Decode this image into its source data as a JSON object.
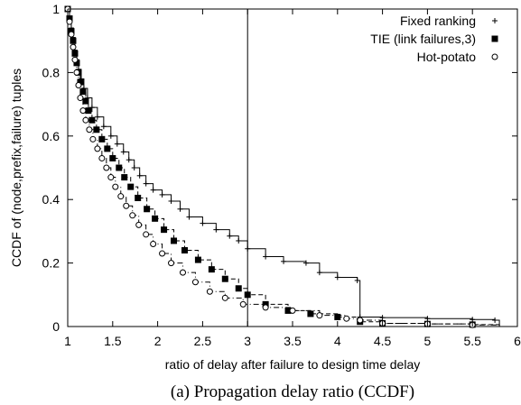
{
  "chart_data": {
    "type": "line",
    "caption": "(a) Propagation delay ratio (CCDF)",
    "xlabel": "ratio of delay after failure to design time delay",
    "ylabel": "CCDF of (node,prefix,failure) tuples",
    "xlim": [
      1,
      6
    ],
    "ylim": [
      0,
      1
    ],
    "xticks": [
      "1",
      "1.5",
      "2",
      "2.5",
      "3",
      "3.5",
      "4",
      "4.5",
      "5",
      "5.5",
      "6"
    ],
    "yticks": [
      "0",
      "0.2",
      "0.4",
      "0.6",
      "0.8",
      "1"
    ],
    "reference_line_x": 3,
    "grid": false,
    "legend_position": "top-right",
    "series": [
      {
        "name": "Fixed ranking",
        "marker": "plus",
        "line_style": "solid",
        "points": [
          [
            1.0,
            1.0
          ],
          [
            1.02,
            0.97
          ],
          [
            1.04,
            0.94
          ],
          [
            1.06,
            0.91
          ],
          [
            1.08,
            0.87
          ],
          [
            1.1,
            0.84
          ],
          [
            1.12,
            0.81
          ],
          [
            1.15,
            0.78
          ],
          [
            1.18,
            0.75
          ],
          [
            1.22,
            0.72
          ],
          [
            1.27,
            0.69
          ],
          [
            1.33,
            0.66
          ],
          [
            1.4,
            0.63
          ],
          [
            1.48,
            0.6
          ],
          [
            1.55,
            0.575
          ],
          [
            1.62,
            0.55
          ],
          [
            1.68,
            0.525
          ],
          [
            1.74,
            0.5
          ],
          [
            1.8,
            0.475
          ],
          [
            1.87,
            0.45
          ],
          [
            1.95,
            0.43
          ],
          [
            2.05,
            0.415
          ],
          [
            2.15,
            0.395
          ],
          [
            2.25,
            0.37
          ],
          [
            2.35,
            0.345
          ],
          [
            2.5,
            0.325
          ],
          [
            2.65,
            0.305
          ],
          [
            2.8,
            0.285
          ],
          [
            2.9,
            0.27
          ],
          [
            3.0,
            0.245
          ],
          [
            3.2,
            0.22
          ],
          [
            3.4,
            0.205
          ],
          [
            3.65,
            0.2
          ],
          [
            3.8,
            0.17
          ],
          [
            4.0,
            0.155
          ],
          [
            4.22,
            0.145
          ],
          [
            4.25,
            0.03
          ],
          [
            4.5,
            0.028
          ],
          [
            5.0,
            0.025
          ],
          [
            5.5,
            0.022
          ],
          [
            5.75,
            0.02
          ],
          [
            5.8,
            0.0
          ]
        ]
      },
      {
        "name": "TIE (link failures,3)",
        "marker": "filled-square",
        "line_style": "dashed",
        "points": [
          [
            1.0,
            1.0
          ],
          [
            1.02,
            0.97
          ],
          [
            1.04,
            0.93
          ],
          [
            1.06,
            0.9
          ],
          [
            1.08,
            0.86
          ],
          [
            1.1,
            0.83
          ],
          [
            1.12,
            0.8
          ],
          [
            1.14,
            0.77
          ],
          [
            1.17,
            0.74
          ],
          [
            1.2,
            0.71
          ],
          [
            1.23,
            0.68
          ],
          [
            1.27,
            0.65
          ],
          [
            1.32,
            0.62
          ],
          [
            1.38,
            0.59
          ],
          [
            1.44,
            0.56
          ],
          [
            1.5,
            0.53
          ],
          [
            1.57,
            0.5
          ],
          [
            1.63,
            0.47
          ],
          [
            1.7,
            0.44
          ],
          [
            1.78,
            0.405
          ],
          [
            1.88,
            0.37
          ],
          [
            1.97,
            0.34
          ],
          [
            2.07,
            0.305
          ],
          [
            2.18,
            0.27
          ],
          [
            2.3,
            0.24
          ],
          [
            2.45,
            0.21
          ],
          [
            2.6,
            0.18
          ],
          [
            2.75,
            0.15
          ],
          [
            2.9,
            0.12
          ],
          [
            3.0,
            0.1
          ],
          [
            3.2,
            0.07
          ],
          [
            3.45,
            0.05
          ],
          [
            3.7,
            0.04
          ],
          [
            4.0,
            0.03
          ],
          [
            4.25,
            0.015
          ],
          [
            4.5,
            0.01
          ],
          [
            5.0,
            0.008
          ],
          [
            5.5,
            0.006
          ],
          [
            5.8,
            0.0
          ]
        ]
      },
      {
        "name": "Hot-potato",
        "marker": "open-circle",
        "line_style": "dash-dot",
        "points": [
          [
            1.0,
            1.0
          ],
          [
            1.02,
            0.96
          ],
          [
            1.04,
            0.92
          ],
          [
            1.06,
            0.88
          ],
          [
            1.08,
            0.84
          ],
          [
            1.1,
            0.8
          ],
          [
            1.12,
            0.76
          ],
          [
            1.14,
            0.72
          ],
          [
            1.17,
            0.68
          ],
          [
            1.2,
            0.65
          ],
          [
            1.24,
            0.62
          ],
          [
            1.28,
            0.59
          ],
          [
            1.33,
            0.56
          ],
          [
            1.38,
            0.53
          ],
          [
            1.43,
            0.5
          ],
          [
            1.48,
            0.47
          ],
          [
            1.53,
            0.44
          ],
          [
            1.59,
            0.41
          ],
          [
            1.65,
            0.38
          ],
          [
            1.72,
            0.35
          ],
          [
            1.79,
            0.32
          ],
          [
            1.87,
            0.29
          ],
          [
            1.95,
            0.26
          ],
          [
            2.05,
            0.23
          ],
          [
            2.15,
            0.2
          ],
          [
            2.28,
            0.17
          ],
          [
            2.42,
            0.14
          ],
          [
            2.58,
            0.11
          ],
          [
            2.75,
            0.09
          ],
          [
            2.95,
            0.07
          ],
          [
            3.2,
            0.06
          ],
          [
            3.5,
            0.05
          ],
          [
            3.8,
            0.035
          ],
          [
            4.1,
            0.025
          ],
          [
            4.25,
            0.02
          ],
          [
            4.5,
            0.01
          ],
          [
            5.0,
            0.008
          ],
          [
            5.5,
            0.005
          ],
          [
            5.8,
            0.0
          ]
        ]
      }
    ]
  }
}
